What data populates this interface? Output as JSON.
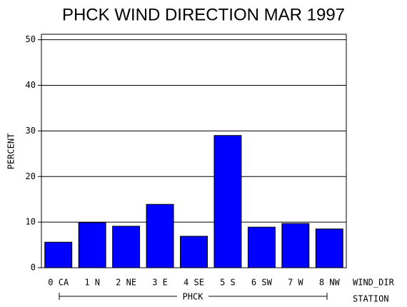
{
  "chart_data": {
    "type": "bar",
    "title": "PHCK WIND DIRECTION MAR 1997",
    "y_label": "PERCENT",
    "x_label": "WIND_DIR",
    "group_axis_label": "STATION",
    "group": "PHCK",
    "categories": [
      "0 CA",
      "1 N",
      "2 NE",
      "3 E",
      "4 SE",
      "5 S",
      "6 SW",
      "7 W",
      "8 NW"
    ],
    "values": [
      5.6,
      9.9,
      9.1,
      13.9,
      6.9,
      29.0,
      8.9,
      9.7,
      8.5
    ],
    "color": "#0000ff",
    "ylim": [
      0,
      51.2
    ],
    "yticks": [
      0,
      10,
      20,
      30,
      40,
      50
    ],
    "grid": true
  }
}
